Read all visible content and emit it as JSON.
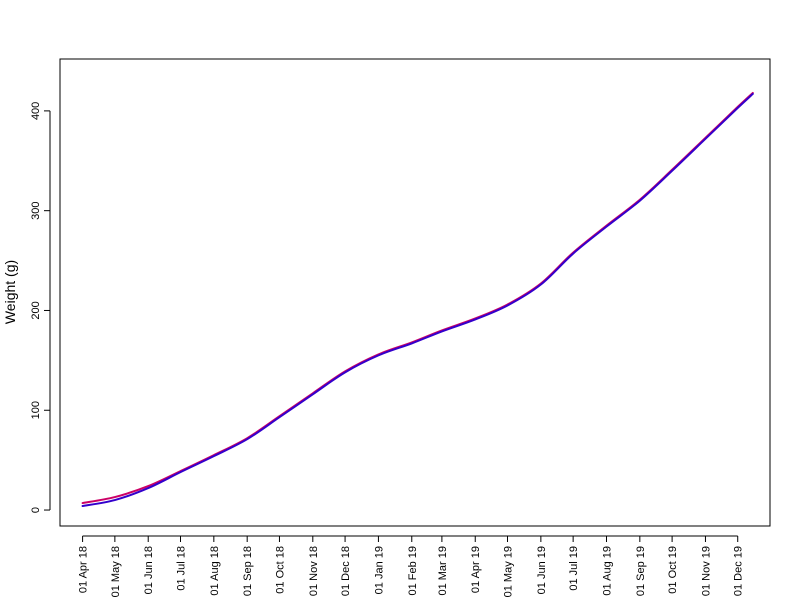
{
  "chart_data": {
    "type": "line",
    "title": "",
    "xlabel": "",
    "ylabel": "Weight (g)",
    "grid": false,
    "legend": "none",
    "x_ticks": [
      "01 Apr 18",
      "01 May 18",
      "01 Jun 18",
      "01 Jul 18",
      "01 Aug 18",
      "01 Sep 18",
      "01 Oct 18",
      "01 Nov 18",
      "01 Dec 18",
      "01 Jan 19",
      "01 Feb 19",
      "01 Mar 19",
      "01 Apr 19",
      "01 May 19",
      "01 Jun 19",
      "01 Jul 19",
      "01 Aug 19",
      "01 Sep 19",
      "01 Oct 19",
      "01 Nov 19",
      "01 Dec 19"
    ],
    "y_ticks": [
      0,
      100,
      200,
      300,
      400
    ],
    "xlim": [
      "2018-03-11",
      "2019-12-31"
    ],
    "ylim": [
      -16,
      452
    ],
    "series": [
      {
        "color": "#cc0066",
        "x": [
          "2018-04-01",
          "2018-05-01",
          "2018-06-01",
          "2018-07-01",
          "2018-08-01",
          "2018-09-01",
          "2018-10-01",
          "2018-11-01",
          "2018-12-01",
          "2019-01-01",
          "2019-02-01",
          "2019-03-01",
          "2019-04-01",
          "2019-05-01",
          "2019-06-01",
          "2019-07-01",
          "2019-08-01",
          "2019-09-01",
          "2019-10-01",
          "2019-11-01",
          "2019-12-01",
          "2019-12-15"
        ],
        "values": [
          7,
          13,
          24,
          39,
          55,
          72,
          94,
          117,
          139,
          156,
          168,
          180,
          192,
          206,
          227,
          258,
          285,
          311,
          341,
          373,
          404,
          418
        ]
      },
      {
        "color": "#3300cc",
        "x": [
          "2018-04-01",
          "2018-05-01",
          "2018-06-01",
          "2018-07-01",
          "2018-08-01",
          "2018-09-01",
          "2018-10-01",
          "2018-11-01",
          "2018-12-01",
          "2019-01-01",
          "2019-02-01",
          "2019-03-01",
          "2019-04-01",
          "2019-05-01",
          "2019-06-01",
          "2019-07-01",
          "2019-08-01",
          "2019-09-01",
          "2019-10-01",
          "2019-11-01",
          "2019-12-01",
          "2019-12-15"
        ],
        "values": [
          4,
          10,
          22,
          38,
          54,
          71,
          93,
          116,
          138,
          155,
          167,
          179,
          191,
          205,
          226,
          257,
          284,
          310,
          340,
          372,
          403,
          417
        ]
      }
    ]
  }
}
